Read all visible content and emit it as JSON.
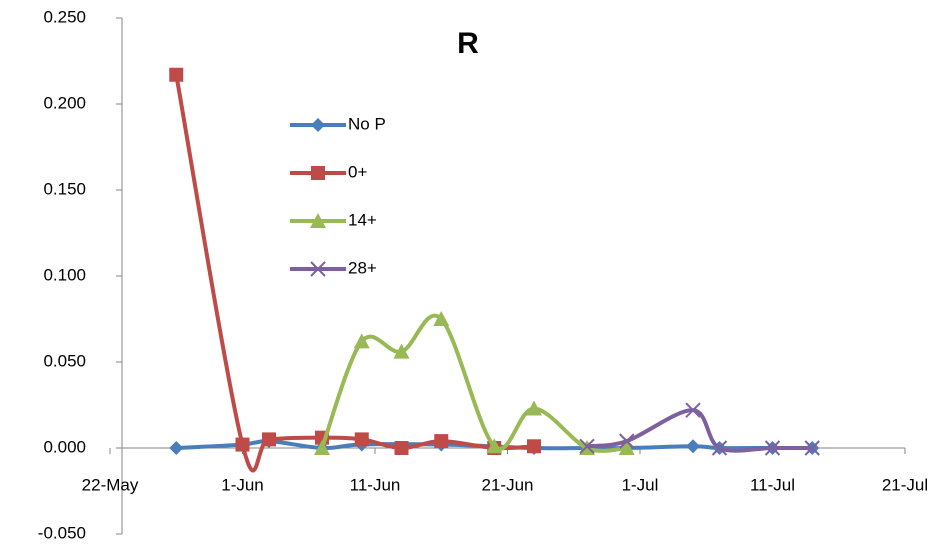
{
  "chart_data": {
    "type": "line",
    "title": "R",
    "xlim": [
      "22-May",
      "21-Jul"
    ],
    "xticks": [
      "22-May",
      "1-Jun",
      "11-Jun",
      "21-Jun",
      "1-Jul",
      "11-Jul",
      "21-Jul"
    ],
    "ylim": [
      -0.05,
      0.25
    ],
    "yticks": [
      {
        "value": -0.05,
        "label": "-0.050"
      },
      {
        "value": 0,
        "label": "0.000"
      },
      {
        "value": 0.05,
        "label": "0.050"
      },
      {
        "value": 0.1,
        "label": "0.100"
      },
      {
        "value": 0.15,
        "label": "0.150"
      },
      {
        "value": 0.2,
        "label": "0.200"
      },
      {
        "value": 0.25,
        "label": "0.250"
      }
    ],
    "smooth": true,
    "series": [
      {
        "name": "No P",
        "color": "#4a7ebb",
        "marker": "diamond",
        "x": [
          "27-May",
          "1-Jun",
          "3-Jun",
          "7-Jun",
          "10-Jun",
          "16-Jun",
          "23-Jun",
          "27-Jun",
          "30-Jun",
          "5-Jul",
          "7-Jul",
          "11-Jul",
          "14-Jul"
        ],
        "values": [
          0.0,
          0.002,
          0.004,
          0.0,
          0.002,
          0.002,
          0.0,
          0.0,
          0.0,
          0.001,
          0.0,
          0.0,
          0.0
        ]
      },
      {
        "name": "0+",
        "color": "#be4b48",
        "marker": "square",
        "x": [
          "27-May",
          "1-Jun",
          "3-Jun",
          "7-Jun",
          "10-Jun",
          "13-Jun",
          "16-Jun",
          "20-Jun",
          "23-Jun"
        ],
        "values": [
          0.217,
          0.002,
          0.005,
          0.006,
          0.005,
          0.0,
          0.004,
          0.0,
          0.001
        ]
      },
      {
        "name": "14+",
        "color": "#98b954",
        "marker": "triangle",
        "x": [
          "7-Jun",
          "10-Jun",
          "13-Jun",
          "16-Jun",
          "20-Jun",
          "23-Jun",
          "27-Jun",
          "30-Jun"
        ],
        "values": [
          0.0,
          0.062,
          0.056,
          0.075,
          0.001,
          0.023,
          0.0,
          0.0
        ]
      },
      {
        "name": "28+",
        "color": "#7d60a0",
        "marker": "x",
        "x": [
          "27-Jun",
          "30-Jun",
          "5-Jul",
          "7-Jul",
          "11-Jul",
          "14-Jul"
        ],
        "values": [
          0.001,
          0.004,
          0.022,
          0.0,
          0.0,
          0.0
        ]
      }
    ]
  }
}
